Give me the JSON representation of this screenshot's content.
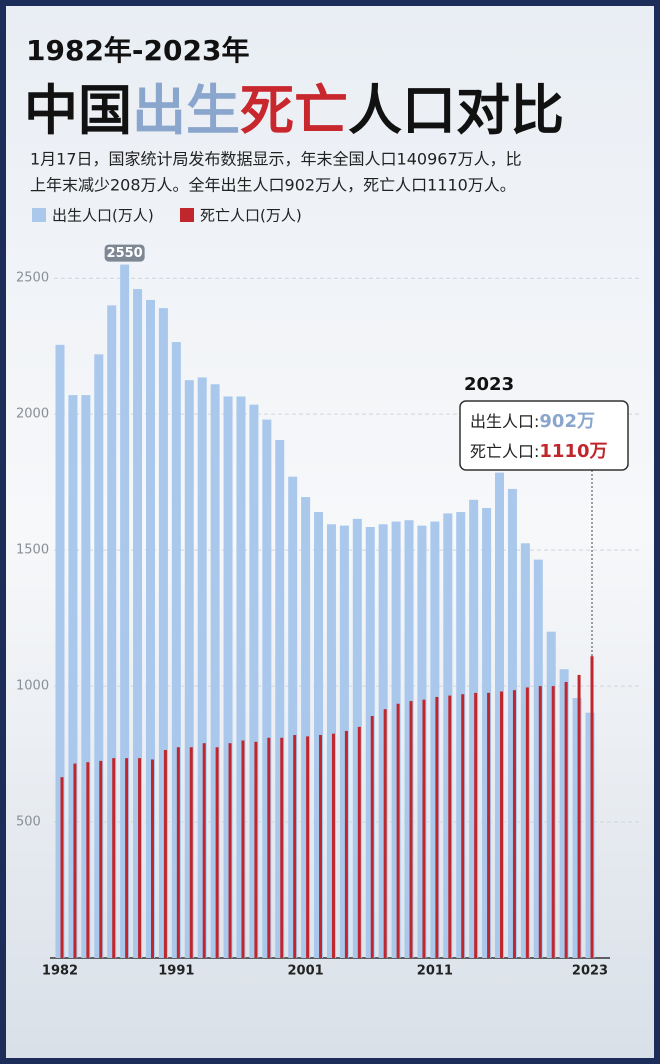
{
  "chart_data": {
    "type": "bar",
    "title_line1": "1982年-2023年",
    "title_parts": [
      "中国",
      "出生",
      "死亡",
      "人口对比"
    ],
    "subtitle_lines": [
      "1月17日，国家统计局发布数据显示，年末全国人口140967万人，比",
      "上年末减少208万人。全年出生人口902万人，死亡人口1110万人。"
    ],
    "categories": [
      "1982",
      null,
      null,
      null,
      null,
      null,
      null,
      null,
      null,
      "1991",
      null,
      null,
      null,
      null,
      null,
      null,
      null,
      null,
      null,
      "2001",
      null,
      null,
      null,
      null,
      null,
      null,
      null,
      null,
      null,
      "2011",
      null,
      null,
      null,
      null,
      null,
      null,
      null,
      null,
      null,
      null,
      null,
      "2023"
    ],
    "series": [
      {
        "name": "出生人口(万人)",
        "color": "#a9c8ec",
        "values": [
          2255,
          2070,
          2070,
          2220,
          2400,
          2550,
          2460,
          2420,
          2390,
          2265,
          2125,
          2135,
          2110,
          2065,
          2065,
          2035,
          1980,
          1905,
          1770,
          1695,
          1640,
          1595,
          1590,
          1615,
          1585,
          1595,
          1605,
          1610,
          1590,
          1605,
          1635,
          1640,
          1685,
          1655,
          1785,
          1725,
          1525,
          1465,
          1200,
          1062,
          956,
          902
        ]
      },
      {
        "name": "死亡人口(万人)",
        "color": "#c0272d",
        "values": [
          665,
          715,
          720,
          725,
          735,
          735,
          735,
          730,
          765,
          775,
          775,
          790,
          775,
          790,
          800,
          795,
          810,
          810,
          820,
          815,
          820,
          825,
          835,
          850,
          890,
          915,
          935,
          945,
          950,
          960,
          965,
          970,
          975,
          975,
          980,
          985,
          995,
          1000,
          1000,
          1015,
          1041,
          1110
        ]
      }
    ],
    "ylim": [
      0,
      2600
    ],
    "yticks": [
      500,
      1000,
      1500,
      2000,
      2500
    ],
    "grid": true,
    "annotations": {
      "peak_label": "2550",
      "year": "2023",
      "birth_label": "出生人口:",
      "birth_value": "902万",
      "death_label": "死亡人口:",
      "death_value": "1110万"
    }
  }
}
